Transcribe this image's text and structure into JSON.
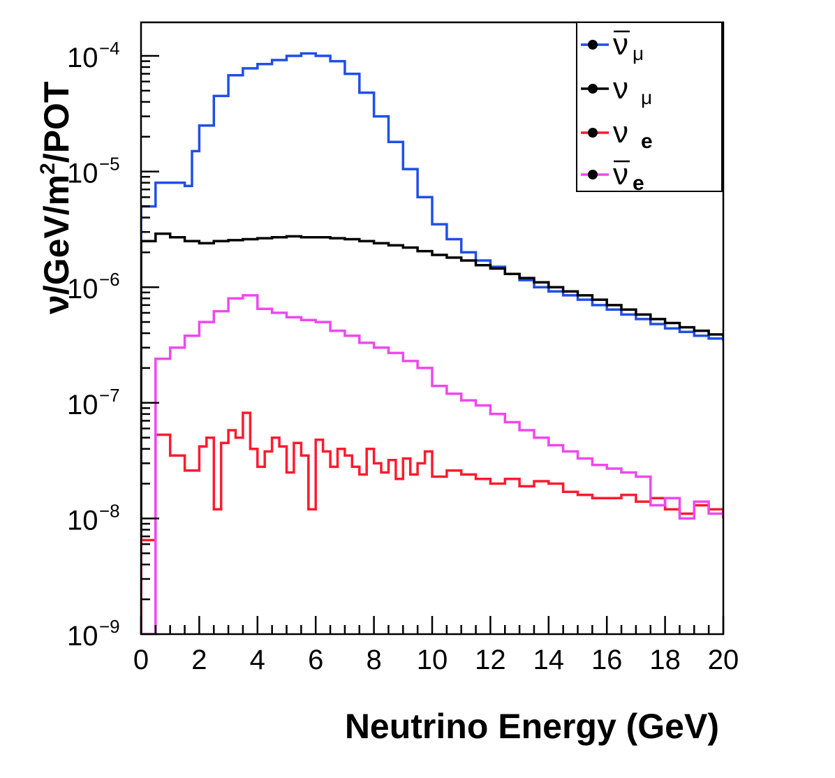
{
  "chart_data": {
    "type": "line",
    "title": "",
    "xlabel": "Neutrino Energy (GeV)",
    "ylabel": "ν/GeV/m²/POT",
    "ylabel_parts": {
      "main": "ν/GeV/m",
      "sup": "2",
      "tail": "/POT"
    },
    "xlim": [
      0,
      20
    ],
    "ylim": [
      1e-09,
      0.0002
    ],
    "yscale": "log",
    "grid": false,
    "legend_position": "top-right",
    "x_ticks": [
      0,
      2,
      4,
      6,
      8,
      10,
      12,
      14,
      16,
      18,
      20
    ],
    "x_tick_labels": [
      "0",
      "2",
      "4",
      "6",
      "8",
      "10",
      "12",
      "14",
      "16",
      "18",
      "20"
    ],
    "y_ticks": [
      {
        "value": 1e-09,
        "base": "10",
        "exp": "−9"
      },
      {
        "value": 1e-08,
        "base": "10",
        "exp": "−8"
      },
      {
        "value": 1e-07,
        "base": "10",
        "exp": "−7"
      },
      {
        "value": 1e-06,
        "base": "10",
        "exp": "−6"
      },
      {
        "value": 1e-05,
        "base": "10",
        "exp": "−5"
      },
      {
        "value": 0.0001,
        "base": "10",
        "exp": "−4"
      }
    ],
    "series": [
      {
        "name": "ν̄μ",
        "symbol": "ν",
        "bar": true,
        "sub": "μ",
        "sub_bold": false,
        "color": "#1f4fe8",
        "x": [
          0,
          0.5,
          1.5,
          1.75,
          2,
          2.5,
          3,
          3.5,
          4,
          4.5,
          5,
          5.5,
          6,
          6.5,
          7,
          7.5,
          8,
          8.5,
          9,
          9.5,
          10,
          10.5,
          11,
          11.5,
          12,
          12.5,
          13,
          13.5,
          14,
          14.5,
          15,
          15.5,
          16,
          16.5,
          17,
          17.5,
          18,
          18.5,
          19,
          19.5,
          20
        ],
        "values": [
          5e-06,
          8e-06,
          7.5e-06,
          1.5e-05,
          2.5e-05,
          4.5e-05,
          6.8e-05,
          7.8e-05,
          8.5e-05,
          9.2e-05,
          0.0001,
          0.000105,
          0.0001,
          9e-05,
          7e-05,
          4.8e-05,
          3e-05,
          1.8e-05,
          1.05e-05,
          6e-06,
          3.5e-06,
          2.6e-06,
          2e-06,
          1.7e-06,
          1.5e-06,
          1.3e-06,
          1.15e-06,
          1e-06,
          9.2e-07,
          8.5e-07,
          7.8e-07,
          7e-07,
          6.4e-07,
          5.8e-07,
          5.3e-07,
          4.8e-07,
          4.4e-07,
          4.1e-07,
          3.8e-07,
          3.6e-07,
          3.4e-07
        ]
      },
      {
        "name": "ν μ",
        "symbol": "ν",
        "bar": false,
        "sub": "μ",
        "sub_bold": false,
        "color": "#000000",
        "x": [
          0,
          0.5,
          1,
          1.5,
          2,
          2.5,
          3,
          3.5,
          4,
          4.5,
          5,
          5.5,
          6,
          6.5,
          7,
          7.5,
          8,
          8.5,
          9,
          9.5,
          10,
          10.5,
          11,
          11.5,
          12,
          12.5,
          13,
          13.5,
          14,
          14.5,
          15,
          15.5,
          16,
          16.5,
          17,
          17.5,
          18,
          18.5,
          19,
          19.5,
          20
        ],
        "values": [
          2.5e-06,
          2.9e-06,
          2.7e-06,
          2.5e-06,
          2.4e-06,
          2.5e-06,
          2.55e-06,
          2.6e-06,
          2.65e-06,
          2.7e-06,
          2.75e-06,
          2.7e-06,
          2.7e-06,
          2.65e-06,
          2.6e-06,
          2.5e-06,
          2.4e-06,
          2.3e-06,
          2.2e-06,
          2.05e-06,
          1.9e-06,
          1.8e-06,
          1.7e-06,
          1.55e-06,
          1.45e-06,
          1.3e-06,
          1.2e-06,
          1.1e-06,
          1e-06,
          9.2e-07,
          8.5e-07,
          7.8e-07,
          7e-07,
          6.4e-07,
          5.8e-07,
          5.3e-07,
          4.9e-07,
          4.5e-07,
          4.2e-07,
          3.9e-07,
          3.7e-07
        ]
      },
      {
        "name": "ν e",
        "symbol": "ν",
        "bar": false,
        "sub": "e",
        "sub_bold": true,
        "color": "#ff1a2e",
        "x": [
          0,
          0.5,
          1,
          1.5,
          2,
          2.25,
          2.5,
          2.75,
          3,
          3.25,
          3.5,
          3.75,
          4,
          4.25,
          4.5,
          4.75,
          5,
          5.25,
          5.5,
          5.75,
          6,
          6.25,
          6.5,
          6.75,
          7,
          7.25,
          7.5,
          7.75,
          8,
          8.25,
          8.5,
          8.75,
          9,
          9.25,
          9.5,
          9.75,
          10,
          10.5,
          11,
          11.5,
          12,
          12.5,
          13,
          13.5,
          14,
          14.5,
          15,
          15.5,
          16,
          16.5,
          17,
          17.5,
          18,
          18.5,
          19,
          19.5,
          20
        ],
        "values": [
          6.5e-09,
          5.3e-08,
          3.5e-08,
          2.6e-08,
          4.2e-08,
          5e-08,
          1.2e-08,
          4.5e-08,
          5.8e-08,
          5e-08,
          8.2e-08,
          4e-08,
          2.8e-08,
          3.8e-08,
          5e-08,
          4.2e-08,
          2.5e-08,
          4.5e-08,
          3.5e-08,
          1.2e-08,
          4.8e-08,
          3.8e-08,
          2.8e-08,
          4e-08,
          3.5e-08,
          2.8e-08,
          2.4e-08,
          4e-08,
          3e-08,
          2.5e-08,
          3.2e-08,
          2.2e-08,
          3.3e-08,
          2.4e-08,
          3e-08,
          3.8e-08,
          2.3e-08,
          2.6e-08,
          2.4e-08,
          2.2e-08,
          2e-08,
          2.2e-08,
          1.9e-08,
          2.1e-08,
          2e-08,
          1.7e-08,
          1.6e-08,
          1.5e-08,
          1.5e-08,
          1.6e-08,
          1.4e-08,
          1.5e-08,
          1.2e-08,
          1.1e-08,
          1.3e-08,
          1.2e-08,
          1e-08
        ]
      },
      {
        "name": "ν̄e",
        "symbol": "ν",
        "bar": true,
        "sub": "e",
        "sub_bold": true,
        "color": "#ee48ee",
        "x": [
          0,
          0.5,
          1,
          1.5,
          2,
          2.5,
          3,
          3.5,
          4,
          4.5,
          5,
          5.5,
          6,
          6.5,
          7,
          7.5,
          8,
          8.5,
          9,
          9.5,
          10,
          10.5,
          11,
          11.5,
          12,
          12.5,
          13,
          13.5,
          14,
          14.5,
          15,
          15.5,
          16,
          16.5,
          17,
          17.5,
          18,
          18.5,
          19,
          19.5,
          20
        ],
        "values": [
          1e-09,
          2.4e-07,
          3e-07,
          3.8e-07,
          5e-07,
          6.2e-07,
          8e-07,
          8.5e-07,
          6.5e-07,
          6e-07,
          5.5e-07,
          5.2e-07,
          5e-07,
          4.2e-07,
          3.8e-07,
          3.3e-07,
          3e-07,
          2.7e-07,
          2.3e-07,
          2e-07,
          1.4e-07,
          1.2e-07,
          1.05e-07,
          9.5e-08,
          8e-08,
          6.8e-08,
          5.8e-08,
          5e-08,
          4.3e-08,
          3.8e-08,
          3.3e-08,
          2.9e-08,
          2.7e-08,
          2.5e-08,
          2.3e-08,
          1.3e-08,
          1.5e-08,
          1e-08,
          1.4e-08,
          1.1e-08,
          1.2e-08
        ]
      }
    ]
  }
}
